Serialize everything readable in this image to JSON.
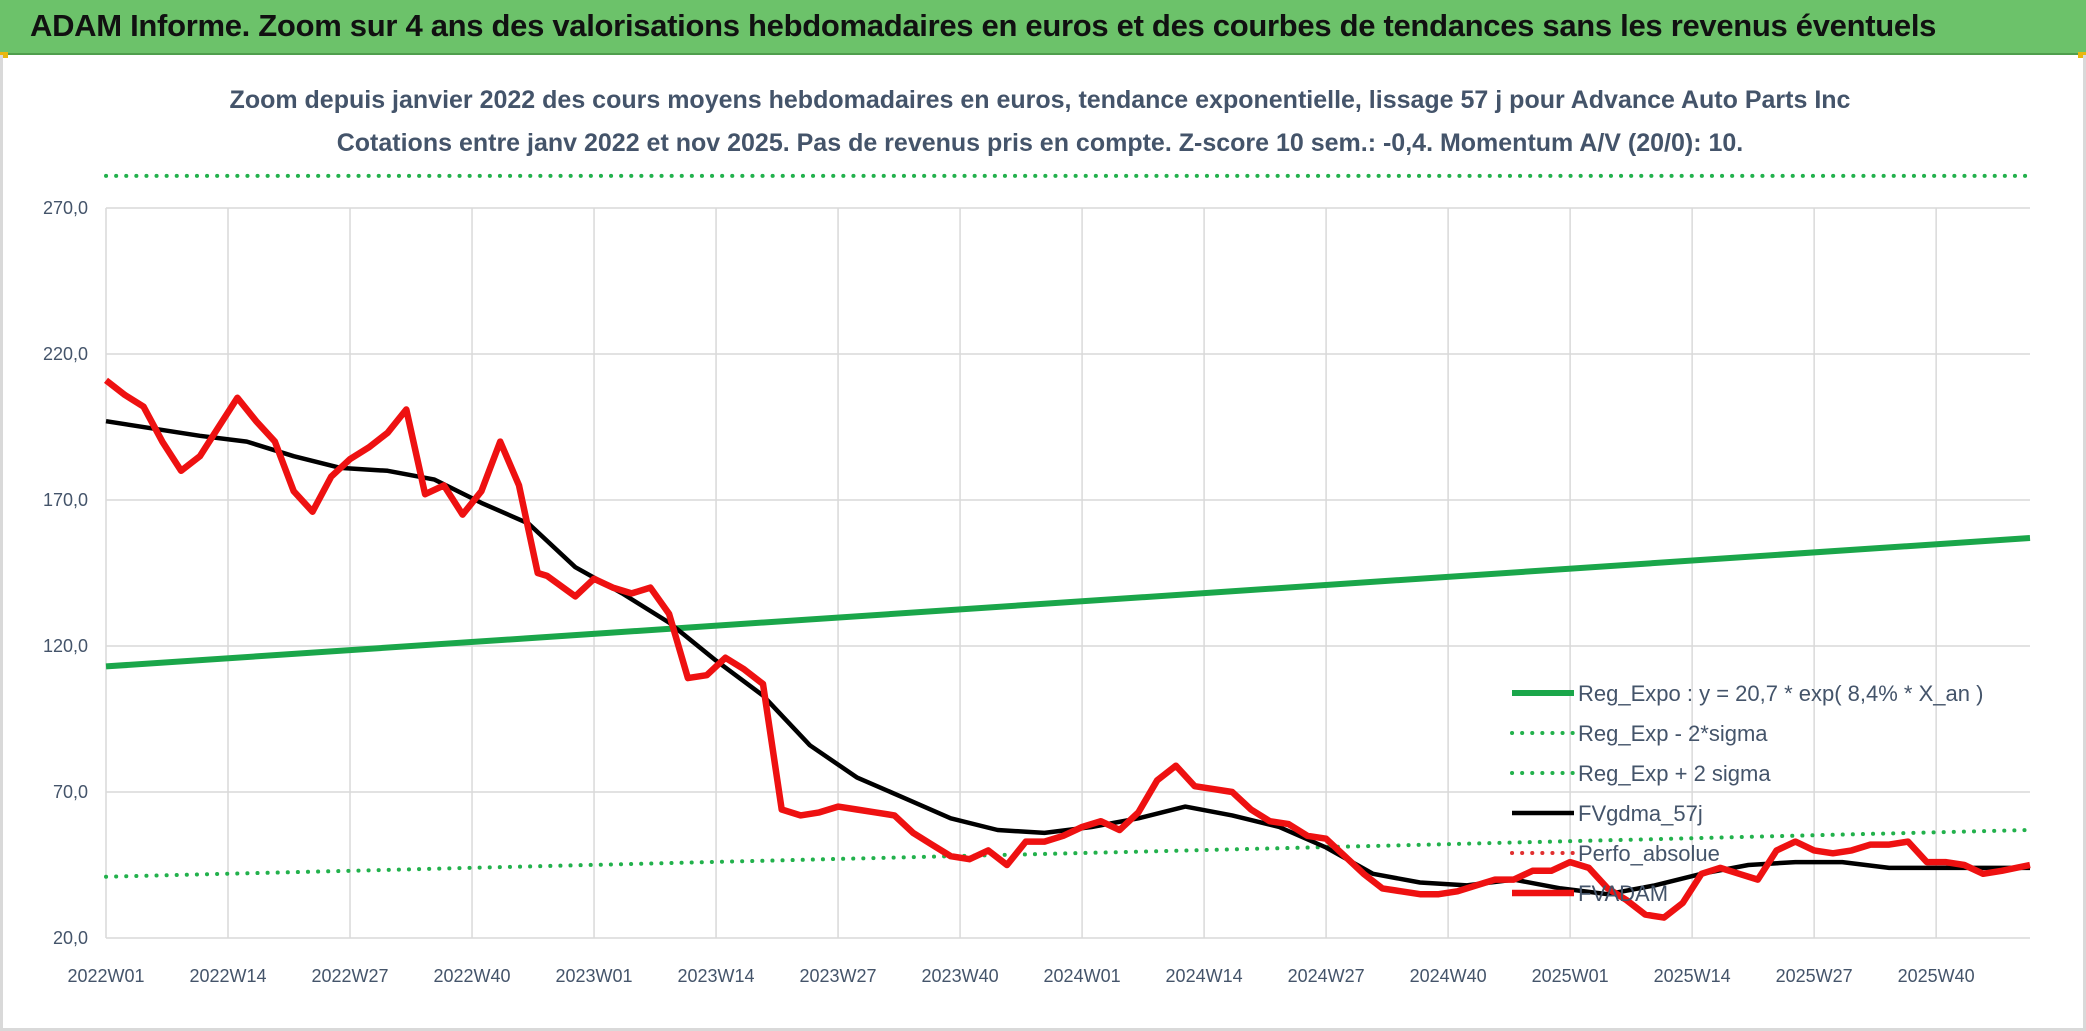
{
  "banner": {
    "title": "ADAM Informe. Zoom sur 4 ans des valorisations hebdomadaires en euros et des courbes de tendances sans les revenus éventuels"
  },
  "chart_data": {
    "type": "line",
    "title": "Zoom depuis janvier 2022 des cours moyens hebdomadaires en euros, tendance exponentielle, lissage 57 j pour Advance Auto Parts Inc",
    "subtitle": "Cotations entre janv 2022 et nov 2025. Pas de revenus pris en compte. Z-score 10 sem.: -0,4. Momentum A/V (20/0): 10.",
    "xlabel": "",
    "ylabel": "",
    "ylim": [
      20,
      290
    ],
    "yticks": [
      "20,0",
      "70,0",
      "120,0",
      "170,0",
      "220,0",
      "270,0"
    ],
    "ytick_values": [
      20,
      70,
      120,
      170,
      220,
      270
    ],
    "x_tick_labels": [
      "2022W01",
      "2022W14",
      "2022W27",
      "2022W40",
      "2023W01",
      "2023W14",
      "2023W27",
      "2023W40",
      "2024W01",
      "2024W14",
      "2024W27",
      "2024W40",
      "2025W01",
      "2025W14",
      "2025W27",
      "2025W40"
    ],
    "n_weeks": 206,
    "grid": true,
    "legend_position": "bottom-right",
    "colors": {
      "trend": "#1aa64a",
      "band": "#22b14c",
      "smooth": "#000000",
      "perf": "#e03030",
      "price": "#ee1111",
      "grid": "#d9d9d9",
      "banner": "#6cc26a"
    },
    "series": [
      {
        "name": "Reg_Expo : y = 20,7 * exp( 8,4% *  X_an )",
        "style": "solid-thick",
        "x": [
          0,
          205
        ],
        "values": [
          113,
          157
        ]
      },
      {
        "name": "Reg_Exp - 2*sigma",
        "style": "dotted",
        "x": [
          0,
          205
        ],
        "values": [
          41,
          57
        ]
      },
      {
        "name": "Reg_Exp + 2 sigma",
        "style": "dotted",
        "x": [
          0,
          205
        ],
        "values": [
          281,
          281
        ]
      },
      {
        "name": "FVgdma_57j",
        "style": "solid",
        "x": [
          0,
          10,
          15,
          20,
          25,
          30,
          35,
          40,
          45,
          50,
          55,
          60,
          65,
          70,
          75,
          80,
          85,
          90,
          95,
          100,
          105,
          110,
          115,
          120,
          125,
          130,
          135,
          140,
          145,
          150,
          155,
          160,
          165,
          170,
          175,
          180,
          185,
          190,
          195,
          200,
          205
        ],
        "values": [
          197,
          192,
          190,
          185,
          181,
          180,
          177,
          169,
          162,
          147,
          138,
          128,
          115,
          103,
          86,
          75,
          68,
          61,
          57,
          56,
          58,
          61,
          65,
          62,
          58,
          51,
          42,
          39,
          38,
          40,
          37,
          35,
          38,
          42,
          45,
          46,
          46,
          44,
          44,
          44,
          44
        ]
      },
      {
        "name": "Perfo_absolue",
        "style": "dotted-red",
        "x": [],
        "values": []
      },
      {
        "name": "FVADAM",
        "style": "solid-thick",
        "x": [
          0,
          2,
          4,
          6,
          8,
          10,
          12,
          14,
          16,
          18,
          20,
          22,
          24,
          26,
          28,
          30,
          32,
          34,
          36,
          38,
          40,
          42,
          44,
          46,
          47,
          50,
          52,
          54,
          56,
          58,
          60,
          62,
          64,
          66,
          68,
          70,
          72,
          74,
          76,
          78,
          80,
          82,
          84,
          86,
          88,
          90,
          92,
          94,
          96,
          98,
          100,
          102,
          104,
          106,
          108,
          110,
          112,
          114,
          116,
          118,
          120,
          122,
          124,
          126,
          128,
          130,
          132,
          134,
          136,
          138,
          140,
          142,
          144,
          146,
          148,
          150,
          152,
          154,
          156,
          158,
          160,
          162,
          164,
          166,
          168,
          170,
          172,
          174,
          176,
          178,
          180,
          182,
          184,
          186,
          188,
          190,
          192,
          194,
          196,
          198,
          200,
          202,
          205
        ],
        "values": [
          211,
          206,
          202,
          190,
          180,
          185,
          195,
          205,
          197,
          190,
          173,
          166,
          178,
          184,
          188,
          193,
          201,
          172,
          175,
          165,
          173,
          190,
          175,
          145,
          144,
          137,
          143,
          140,
          138,
          140,
          131,
          109,
          110,
          116,
          112,
          107,
          64,
          62,
          63,
          65,
          64,
          63,
          62,
          56,
          52,
          48,
          47,
          50,
          45,
          53,
          53,
          55,
          58,
          60,
          57,
          63,
          74,
          79,
          72,
          71,
          70,
          64,
          60,
          59,
          55,
          54,
          48,
          42,
          37,
          36,
          35,
          35,
          36,
          38,
          40,
          40,
          43,
          43,
          46,
          44,
          37,
          33,
          28,
          27,
          32,
          42,
          44,
          42,
          40,
          50,
          53,
          50,
          49,
          50,
          52,
          52,
          53,
          46,
          46,
          45,
          42,
          43,
          45
        ]
      }
    ],
    "legend": [
      "Reg_Expo : y = 20,7 * exp( 8,4% *  X_an )",
      "Reg_Exp - 2*sigma",
      "Reg_Exp + 2 sigma",
      "FVgdma_57j",
      "Perfo_absolue",
      "FVADAM"
    ]
  }
}
